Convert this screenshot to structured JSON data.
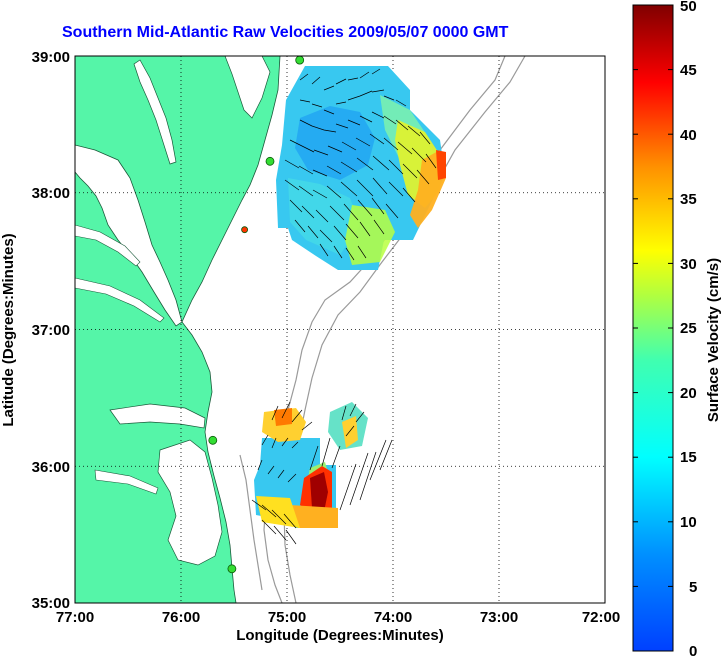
{
  "title": "Southern Mid-Atlantic Raw Velocities 2009/05/07 0000 GMT",
  "x_axis": {
    "label": "Longitude (Degrees:Minutes)",
    "ticks": [
      "77:00",
      "76:00",
      "75:00",
      "74:00",
      "73:00",
      "72:00"
    ]
  },
  "y_axis": {
    "label": "Latitude (Degrees:Minutes)",
    "ticks": [
      "39:00",
      "38:00",
      "37:00",
      "36:00",
      "35:00"
    ]
  },
  "colorbar": {
    "label": "Surface Velocity (cm/s)",
    "ticks": [
      "50",
      "45",
      "40",
      "35",
      "30",
      "25",
      "20",
      "15",
      "10",
      "5",
      "0"
    ],
    "min": 0,
    "max": 50
  },
  "colors": {
    "land": "#55f5a8",
    "title": "#0000ff",
    "station": "#33dd33",
    "station_alert": "#ff3300",
    "bathymetry": "#9a9a9a"
  },
  "map": {
    "lon_range": [
      -77,
      -72
    ],
    "lat_range": [
      35,
      39
    ],
    "grid": true,
    "stations": [
      {
        "lon": -74.88,
        "lat": 38.97,
        "status": "active"
      },
      {
        "lon": -75.16,
        "lat": 38.23,
        "status": "active"
      },
      {
        "lon": -75.4,
        "lat": 37.73,
        "status": "alert"
      },
      {
        "lon": -75.7,
        "lat": 36.19,
        "status": "active"
      },
      {
        "lon": -75.52,
        "lat": 35.25,
        "status": "active"
      }
    ]
  }
}
